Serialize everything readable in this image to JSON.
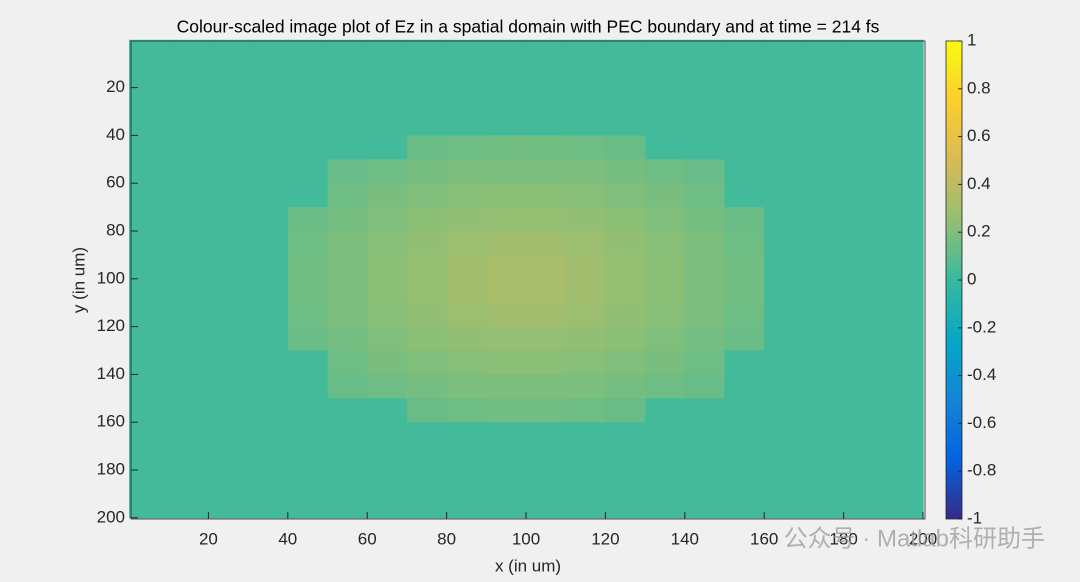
{
  "chart_data": {
    "type": "heatmap",
    "title": "Colour-scaled image plot of Ez in a spatial domain with PEC boundary and at time = 214 fs",
    "x_label": "x (in um)",
    "y_label": "y (in um)",
    "x": [
      5,
      15,
      25,
      35,
      45,
      55,
      65,
      75,
      85,
      95,
      105,
      115,
      125,
      135,
      145,
      155,
      165,
      175,
      185,
      195
    ],
    "y": [
      5,
      15,
      25,
      35,
      45,
      55,
      65,
      75,
      85,
      95,
      105,
      115,
      125,
      135,
      145,
      155,
      165,
      175,
      185,
      195
    ],
    "z": [
      [
        0.03,
        0.03,
        0.03,
        0.03,
        0.03,
        0.03,
        0.03,
        0.03,
        0.03,
        0.03,
        0.03,
        0.03,
        0.03,
        0.03,
        0.03,
        0.03,
        0.03,
        0.03,
        0.03,
        0.03
      ],
      [
        0.03,
        0.03,
        0.03,
        0.03,
        0.03,
        0.03,
        0.03,
        0.03,
        0.03,
        0.03,
        0.03,
        0.03,
        0.03,
        0.03,
        0.03,
        0.03,
        0.03,
        0.03,
        0.03,
        0.03
      ],
      [
        0.03,
        0.03,
        0.03,
        0.03,
        0.03,
        0.03,
        0.03,
        0.03,
        0.03,
        0.03,
        0.03,
        0.03,
        0.03,
        0.03,
        0.03,
        0.03,
        0.03,
        0.03,
        0.03,
        0.03
      ],
      [
        0.03,
        0.03,
        0.03,
        0.03,
        0.03,
        0.03,
        0.03,
        0.03,
        0.03,
        0.03,
        0.03,
        0.03,
        0.03,
        0.03,
        0.03,
        0.03,
        0.03,
        0.03,
        0.03,
        0.03
      ],
      [
        0.03,
        0.03,
        0.03,
        0.03,
        0.03,
        0.03,
        0.03,
        0.14,
        0.15,
        0.16,
        0.16,
        0.15,
        0.14,
        0.03,
        0.03,
        0.03,
        0.03,
        0.03,
        0.03,
        0.03
      ],
      [
        0.03,
        0.03,
        0.03,
        0.03,
        0.03,
        0.13,
        0.15,
        0.17,
        0.19,
        0.19,
        0.19,
        0.19,
        0.17,
        0.15,
        0.13,
        0.03,
        0.03,
        0.03,
        0.03,
        0.03
      ],
      [
        0.03,
        0.03,
        0.03,
        0.03,
        0.03,
        0.15,
        0.18,
        0.2,
        0.22,
        0.23,
        0.23,
        0.22,
        0.2,
        0.18,
        0.15,
        0.03,
        0.03,
        0.03,
        0.03,
        0.03
      ],
      [
        0.03,
        0.03,
        0.03,
        0.03,
        0.14,
        0.17,
        0.2,
        0.23,
        0.25,
        0.26,
        0.26,
        0.25,
        0.23,
        0.2,
        0.17,
        0.14,
        0.03,
        0.03,
        0.03,
        0.03
      ],
      [
        0.03,
        0.03,
        0.03,
        0.03,
        0.15,
        0.19,
        0.22,
        0.25,
        0.28,
        0.3,
        0.3,
        0.28,
        0.25,
        0.22,
        0.19,
        0.15,
        0.03,
        0.03,
        0.03,
        0.03
      ],
      [
        0.03,
        0.03,
        0.03,
        0.03,
        0.16,
        0.19,
        0.23,
        0.26,
        0.3,
        0.33,
        0.33,
        0.3,
        0.26,
        0.23,
        0.19,
        0.16,
        0.03,
        0.03,
        0.03,
        0.03
      ],
      [
        0.03,
        0.03,
        0.03,
        0.03,
        0.16,
        0.19,
        0.23,
        0.26,
        0.3,
        0.33,
        0.33,
        0.3,
        0.26,
        0.23,
        0.19,
        0.16,
        0.03,
        0.03,
        0.03,
        0.03
      ],
      [
        0.03,
        0.03,
        0.03,
        0.03,
        0.15,
        0.19,
        0.22,
        0.25,
        0.28,
        0.3,
        0.3,
        0.28,
        0.25,
        0.22,
        0.19,
        0.15,
        0.03,
        0.03,
        0.03,
        0.03
      ],
      [
        0.03,
        0.03,
        0.03,
        0.03,
        0.14,
        0.17,
        0.2,
        0.23,
        0.25,
        0.26,
        0.26,
        0.25,
        0.23,
        0.2,
        0.17,
        0.14,
        0.03,
        0.03,
        0.03,
        0.03
      ],
      [
        0.03,
        0.03,
        0.03,
        0.03,
        0.03,
        0.15,
        0.18,
        0.2,
        0.22,
        0.23,
        0.23,
        0.22,
        0.2,
        0.18,
        0.15,
        0.03,
        0.03,
        0.03,
        0.03,
        0.03
      ],
      [
        0.03,
        0.03,
        0.03,
        0.03,
        0.03,
        0.13,
        0.15,
        0.17,
        0.19,
        0.19,
        0.19,
        0.19,
        0.17,
        0.15,
        0.13,
        0.03,
        0.03,
        0.03,
        0.03,
        0.03
      ],
      [
        0.03,
        0.03,
        0.03,
        0.03,
        0.03,
        0.03,
        0.03,
        0.14,
        0.15,
        0.16,
        0.16,
        0.15,
        0.14,
        0.03,
        0.03,
        0.03,
        0.03,
        0.03,
        0.03,
        0.03
      ],
      [
        0.03,
        0.03,
        0.03,
        0.03,
        0.03,
        0.03,
        0.03,
        0.03,
        0.03,
        0.03,
        0.03,
        0.03,
        0.03,
        0.03,
        0.03,
        0.03,
        0.03,
        0.03,
        0.03,
        0.03
      ],
      [
        0.03,
        0.03,
        0.03,
        0.03,
        0.03,
        0.03,
        0.03,
        0.03,
        0.03,
        0.03,
        0.03,
        0.03,
        0.03,
        0.03,
        0.03,
        0.03,
        0.03,
        0.03,
        0.03,
        0.03
      ],
      [
        0.03,
        0.03,
        0.03,
        0.03,
        0.03,
        0.03,
        0.03,
        0.03,
        0.03,
        0.03,
        0.03,
        0.03,
        0.03,
        0.03,
        0.03,
        0.03,
        0.03,
        0.03,
        0.03,
        0.03
      ],
      [
        0.03,
        0.03,
        0.03,
        0.03,
        0.03,
        0.03,
        0.03,
        0.03,
        0.03,
        0.03,
        0.03,
        0.03,
        0.03,
        0.03,
        0.03,
        0.03,
        0.03,
        0.03,
        0.03,
        0.03
      ]
    ],
    "cell_size": 10,
    "xlim": [
      0.5,
      200.5
    ],
    "ylim": [
      0.5,
      200.5
    ],
    "y_reversed": true,
    "xticks": [
      20,
      40,
      60,
      80,
      100,
      120,
      140,
      160,
      180,
      200
    ],
    "yticks": [
      20,
      40,
      60,
      80,
      100,
      120,
      140,
      160,
      180,
      200
    ],
    "clim": [
      -1,
      1
    ],
    "cticks": [
      -1,
      -0.8,
      -0.6,
      -0.4,
      -0.2,
      0,
      0.2,
      0.4,
      0.6,
      0.8,
      1
    ],
    "colormap": [
      "#352a87",
      "#0363e1",
      "#1485d4",
      "#06a7c6",
      "#38b99e",
      "#92bf73",
      "#d9ba56",
      "#fcce2e",
      "#f9fb0e"
    ],
    "watermark": "公众号 · Matlab科研助手"
  }
}
